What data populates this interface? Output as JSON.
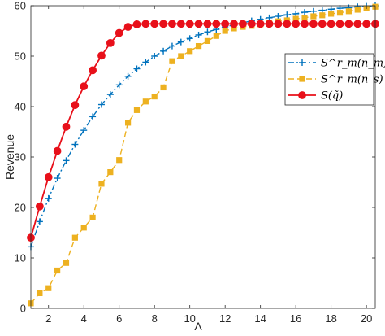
{
  "chart_data": {
    "type": "line",
    "xlabel": "Λ",
    "ylabel": "Revenue",
    "xlim": [
      1,
      20.5
    ],
    "ylim": [
      0,
      60
    ],
    "xticks": [
      2,
      4,
      6,
      8,
      10,
      12,
      14,
      16,
      18,
      20
    ],
    "yticks": [
      0,
      10,
      20,
      30,
      40,
      50,
      60
    ],
    "grid": false,
    "legend_position": "right",
    "series": [
      {
        "name": "S_m^r(n_m)",
        "legend_label": "S^r_m(n_m)",
        "color": "#0072BD",
        "line_style": "dash-dot",
        "marker": "plus",
        "x": [
          1,
          1.5,
          2,
          2.5,
          3,
          3.5,
          4,
          4.5,
          5,
          5.5,
          6,
          6.5,
          7,
          7.5,
          8,
          8.5,
          9,
          9.5,
          10,
          10.5,
          11,
          11.5,
          12,
          12.5,
          13,
          13.5,
          14,
          14.5,
          15,
          15.5,
          16,
          16.5,
          17,
          17.5,
          18,
          18.5,
          19,
          19.5,
          20,
          20.5
        ],
        "values": [
          12.2,
          17.2,
          21.8,
          25.8,
          29.3,
          32.5,
          35.3,
          38.0,
          40.4,
          42.4,
          44.3,
          46.0,
          47.5,
          48.8,
          50.0,
          51.0,
          52.0,
          52.8,
          53.5,
          54.2,
          54.8,
          55.3,
          55.8,
          56.2,
          56.6,
          57.0,
          57.3,
          57.6,
          57.9,
          58.2,
          58.4,
          58.7,
          58.9,
          59.1,
          59.3,
          59.5,
          59.6,
          59.8,
          59.9,
          60.0
        ]
      },
      {
        "name": "S_m^r(n_s)",
        "legend_label": "S^r_m(n_s)",
        "color": "#EDB120",
        "line_style": "dashed",
        "marker": "square",
        "x": [
          1,
          1.5,
          2,
          2.5,
          3,
          3.5,
          4,
          4.5,
          5,
          5.5,
          6,
          6.5,
          7,
          7.5,
          8,
          8.5,
          9,
          9.5,
          10,
          10.5,
          11,
          11.5,
          12,
          12.5,
          13,
          13.5,
          14,
          14.5,
          15,
          15.5,
          16,
          16.5,
          17,
          17.5,
          18,
          18.5,
          19,
          19.5,
          20,
          20.5
        ],
        "values": [
          1.0,
          3.0,
          4.0,
          7.5,
          9.0,
          14.0,
          16.0,
          18.0,
          24.7,
          27.0,
          29.4,
          36.8,
          39.3,
          41.0,
          42.0,
          43.8,
          49.0,
          50.0,
          51.0,
          52.0,
          53.0,
          54.0,
          55.0,
          55.5,
          55.8,
          56.0,
          56.3,
          56.6,
          56.9,
          57.1,
          57.4,
          57.6,
          57.9,
          58.1,
          58.4,
          58.6,
          58.9,
          59.2,
          59.5,
          59.8
        ]
      },
      {
        "name": "S(q̃)",
        "legend_label": "S(q̃)",
        "color": "#E8101A",
        "line_style": "solid",
        "marker": "circle",
        "x": [
          1,
          1.5,
          2,
          2.5,
          3,
          3.5,
          4,
          4.5,
          5,
          5.5,
          6,
          6.5,
          7,
          7.5,
          8,
          8.5,
          9,
          9.5,
          10,
          10.5,
          11,
          11.5,
          12,
          12.5,
          13,
          13.5,
          14,
          14.5,
          15,
          15.5,
          16,
          16.5,
          17,
          17.5,
          18,
          18.5,
          19,
          19.5,
          20,
          20.5
        ],
        "values": [
          14.0,
          20.2,
          26.0,
          31.2,
          36.0,
          40.3,
          44.0,
          47.2,
          50.1,
          52.6,
          54.6,
          55.8,
          56.3,
          56.4,
          56.4,
          56.4,
          56.4,
          56.4,
          56.4,
          56.4,
          56.4,
          56.4,
          56.4,
          56.4,
          56.4,
          56.4,
          56.4,
          56.4,
          56.4,
          56.4,
          56.4,
          56.4,
          56.4,
          56.4,
          56.4,
          56.4,
          56.4,
          56.4,
          56.4,
          56.4
        ]
      }
    ]
  }
}
